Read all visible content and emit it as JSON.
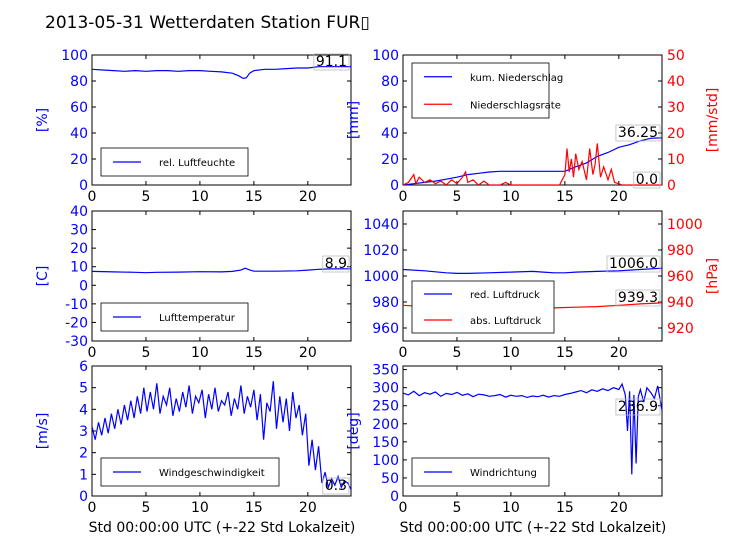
{
  "page_title": "2013-05-31 Wetterdaten Station FUR▯",
  "x_axis_caption": "Std 00:00:00 UTC (+-22 Std Lokalzeit)",
  "chart_data": [
    {
      "type": "line",
      "panel": "humidity",
      "xlim": [
        0,
        24
      ],
      "xticks": [
        0,
        5,
        10,
        15,
        20
      ],
      "ylim": [
        0,
        100
      ],
      "yticks": [
        0,
        20,
        40,
        60,
        80,
        100
      ],
      "ylabel": "[%]",
      "legend_position": "lower-left",
      "last_value_label": "91.1",
      "series": [
        {
          "name": "rel. Luftfeuchte",
          "axis": "left",
          "color": "#0000ff",
          "x": [
            0,
            1,
            2,
            3,
            4,
            5,
            6,
            7,
            8,
            9,
            10,
            11,
            12,
            13,
            13.6,
            14,
            14.3,
            14.6,
            15,
            16,
            17,
            18,
            19,
            20,
            21,
            22,
            23,
            24
          ],
          "y": [
            89,
            88.5,
            88,
            87.5,
            88,
            87.5,
            88,
            88,
            87.5,
            88,
            88,
            87.5,
            87,
            86,
            84,
            82,
            82.5,
            86,
            88,
            89,
            89,
            89.5,
            90,
            90,
            91,
            91,
            91,
            91.1
          ]
        }
      ]
    },
    {
      "type": "line",
      "panel": "precipitation",
      "xlim": [
        0,
        24
      ],
      "xticks": [
        0,
        5,
        10,
        15,
        20
      ],
      "ylim": [
        0,
        100
      ],
      "yticks": [
        0,
        20,
        40,
        60,
        80,
        100
      ],
      "ylabel": "[mm]",
      "y2lim": [
        0,
        50
      ],
      "y2ticks": [
        0,
        10,
        20,
        30,
        40,
        50
      ],
      "y2label": "[mm/std]",
      "legend_position": "upper-left",
      "last_value_label": "36.25",
      "last_value_label_2": "0.0",
      "series": [
        {
          "name": "kum. Niederschlag",
          "axis": "left",
          "color": "#0000ff",
          "x": [
            0,
            1,
            2,
            3,
            4,
            5,
            6,
            7,
            8,
            9,
            10,
            11,
            12,
            13,
            14,
            15,
            16,
            17,
            18,
            19,
            20,
            21,
            22,
            23,
            24
          ],
          "y": [
            0,
            1,
            2,
            3,
            4.5,
            6,
            8,
            9,
            10,
            10.5,
            10.5,
            10.5,
            10.5,
            10.5,
            10.5,
            10.5,
            14,
            17,
            22,
            25,
            29,
            31,
            34,
            36,
            36.25
          ]
        },
        {
          "name": "Niederschlagsrate",
          "axis": "right",
          "color": "#ff0000",
          "x": [
            0,
            0.5,
            1,
            1.2,
            1.5,
            2,
            2.5,
            3,
            3.5,
            4,
            4.5,
            5,
            5.5,
            5.8,
            6,
            6.5,
            7,
            7.5,
            8,
            9,
            9.5,
            10,
            11,
            12,
            13,
            14,
            14.5,
            15,
            15.2,
            15.4,
            15.6,
            15.8,
            16,
            16.3,
            16.6,
            17,
            17.3,
            17.6,
            17.8,
            18,
            18.3,
            18.6,
            19,
            19.3,
            19.6,
            20,
            20.3,
            21,
            22,
            23,
            24
          ],
          "y": [
            0,
            1,
            4,
            0.5,
            3,
            1,
            2,
            0.5,
            1.5,
            0,
            2,
            0.5,
            3,
            5,
            1,
            2,
            0,
            1.5,
            0,
            0,
            1,
            0,
            0,
            0,
            0,
            0,
            0,
            4,
            14,
            5,
            10,
            3,
            12,
            6,
            9,
            2,
            14,
            4,
            8,
            16,
            3,
            7,
            2,
            6,
            1,
            0.5,
            0,
            0,
            0,
            0,
            0
          ]
        }
      ]
    },
    {
      "type": "line",
      "panel": "temperature",
      "xlim": [
        0,
        24
      ],
      "xticks": [
        0,
        5,
        10,
        15,
        20
      ],
      "ylim": [
        -30,
        40
      ],
      "yticks": [
        -30,
        -20,
        -10,
        0,
        10,
        20,
        30,
        40
      ],
      "ylabel": "[C]",
      "legend_position": "lower-left",
      "last_value_label": "8.9",
      "series": [
        {
          "name": "Lufttemperatur",
          "axis": "left",
          "color": "#0000ff",
          "x": [
            0,
            2,
            4,
            5,
            6,
            8,
            10,
            12,
            13,
            13.8,
            14.2,
            14.6,
            15,
            17,
            19,
            20,
            21,
            22,
            24
          ],
          "y": [
            7.5,
            7.2,
            7,
            6.8,
            7,
            7.1,
            7.3,
            7.2,
            7.5,
            8.2,
            9.2,
            8.3,
            7.6,
            7.6,
            7.8,
            8.2,
            8.6,
            8.8,
            8.9
          ]
        }
      ]
    },
    {
      "type": "line",
      "panel": "pressure",
      "xlim": [
        0,
        24
      ],
      "xticks": [
        0,
        5,
        10,
        15,
        20
      ],
      "ylim": [
        950,
        1050
      ],
      "yticks": [
        960,
        980,
        1000,
        1020,
        1040
      ],
      "y2lim": [
        910,
        1010
      ],
      "y2ticks": [
        920,
        940,
        960,
        980,
        1000
      ],
      "y2label": "[hPa]",
      "legend_position": "lower-left",
      "last_value_label": "1006.0",
      "last_value_label_2": "939.3",
      "series": [
        {
          "name": "red. Luftdruck",
          "axis": "left",
          "color": "#0000ff",
          "x": [
            0,
            2,
            4,
            5,
            6,
            8,
            10,
            12,
            13,
            14,
            15,
            16,
            18,
            20,
            22,
            24
          ],
          "y": [
            1005,
            1004,
            1002.5,
            1002,
            1002,
            1002.5,
            1003,
            1003.5,
            1003,
            1002.5,
            1002.5,
            1003,
            1003.5,
            1004,
            1005,
            1006
          ]
        },
        {
          "name": "abs. Luftdruck",
          "axis": "right",
          "color": "#ff0000",
          "x": [
            0,
            2,
            4,
            6,
            8,
            10,
            12,
            14,
            16,
            18,
            20,
            22,
            24
          ],
          "y": [
            937.5,
            936.5,
            936,
            935.5,
            935.5,
            935.5,
            935.5,
            935.5,
            936,
            936.5,
            937.5,
            938.5,
            939.3
          ]
        }
      ]
    },
    {
      "type": "line",
      "panel": "wind_speed",
      "xlim": [
        0,
        24
      ],
      "xticks": [
        0,
        5,
        10,
        15,
        20
      ],
      "ylim": [
        0,
        6
      ],
      "yticks": [
        0,
        1,
        2,
        3,
        4,
        5,
        6
      ],
      "ylabel": "[m/s]",
      "legend_position": "lower-left",
      "last_value_label": "0.3",
      "series": [
        {
          "name": "Windgeschwindigkeit",
          "axis": "left",
          "color": "#0000ff",
          "x": [
            0,
            0.3,
            0.6,
            0.9,
            1.2,
            1.5,
            1.8,
            2.1,
            2.4,
            2.7,
            3,
            3.3,
            3.6,
            3.9,
            4.2,
            4.5,
            4.8,
            5.1,
            5.4,
            5.7,
            6,
            6.3,
            6.6,
            6.9,
            7.2,
            7.5,
            7.8,
            8.1,
            8.4,
            8.7,
            9,
            9.3,
            9.6,
            9.9,
            10.2,
            10.5,
            10.8,
            11.1,
            11.4,
            11.7,
            12,
            12.3,
            12.6,
            12.9,
            13.2,
            13.5,
            13.8,
            14.1,
            14.4,
            14.7,
            15,
            15.3,
            15.6,
            15.9,
            16.2,
            16.5,
            16.8,
            17.1,
            17.4,
            17.7,
            18,
            18.3,
            18.6,
            18.9,
            19.2,
            19.5,
            19.8,
            20.1,
            20.4,
            20.7,
            21,
            21.3,
            21.6,
            21.9,
            22.2,
            22.5,
            22.8,
            23.1,
            23.4,
            23.7,
            24
          ],
          "y": [
            3.2,
            2.6,
            3.4,
            2.8,
            3.6,
            2.9,
            3.8,
            3.1,
            4.0,
            3.3,
            4.2,
            3.5,
            4.4,
            3.6,
            4.6,
            3.8,
            5.0,
            3.9,
            4.8,
            4.0,
            5.2,
            3.8,
            4.6,
            4.2,
            5.0,
            3.7,
            4.5,
            3.9,
            4.8,
            4.1,
            5.1,
            3.8,
            4.6,
            4.3,
            4.9,
            3.6,
            4.7,
            4.0,
            5.0,
            3.9,
            4.4,
            4.2,
            4.8,
            3.7,
            4.5,
            4.0,
            5.1,
            3.8,
            4.6,
            4.1,
            4.9,
            3.5,
            4.7,
            2.6,
            4.3,
            3.9,
            5.3,
            3.1,
            4.6,
            3.4,
            4.5,
            3.0,
            4.8,
            3.6,
            4.2,
            2.8,
            3.8,
            1.4,
            2.6,
            1.2,
            2.3,
            0.6,
            1.1,
            0.4,
            0.8,
            0.5,
            0.9,
            0.4,
            0.7,
            0.6,
            0.3
          ]
        }
      ]
    },
    {
      "type": "line",
      "panel": "wind_direction",
      "xlim": [
        0,
        24
      ],
      "xticks": [
        0,
        5,
        10,
        15,
        20
      ],
      "ylim": [
        0,
        360
      ],
      "yticks": [
        0,
        50,
        100,
        150,
        200,
        250,
        300,
        350
      ],
      "ylabel": "[deg]",
      "legend_position": "lower-left",
      "last_value_label": "236.9",
      "series": [
        {
          "name": "Windrichtung",
          "axis": "left",
          "color": "#0000ff",
          "x": [
            0,
            0.5,
            1,
            1.5,
            2,
            2.5,
            3,
            3.5,
            4,
            4.5,
            5,
            5.5,
            6,
            6.5,
            7,
            7.5,
            8,
            8.5,
            9,
            9.5,
            10,
            10.5,
            11,
            11.5,
            12,
            12.5,
            13,
            13.5,
            14,
            14.5,
            15,
            15.5,
            16,
            16.5,
            17,
            17.5,
            18,
            18.5,
            19,
            19.5,
            20,
            20.3,
            20.6,
            20.8,
            21,
            21.2,
            21.4,
            21.6,
            21.8,
            22,
            22.3,
            22.6,
            23,
            23.3,
            23.6,
            24
          ],
          "y": [
            285,
            280,
            290,
            278,
            286,
            282,
            288,
            276,
            284,
            281,
            287,
            279,
            283,
            275,
            282,
            280,
            276,
            278,
            281,
            274,
            279,
            276,
            278,
            273,
            277,
            275,
            279,
            274,
            278,
            276,
            281,
            284,
            288,
            292,
            286,
            294,
            290,
            297,
            292,
            300,
            295,
            310,
            280,
            180,
            290,
            60,
            280,
            90,
            275,
            295,
            260,
            300,
            285,
            270,
            305,
            237
          ]
        }
      ]
    }
  ]
}
